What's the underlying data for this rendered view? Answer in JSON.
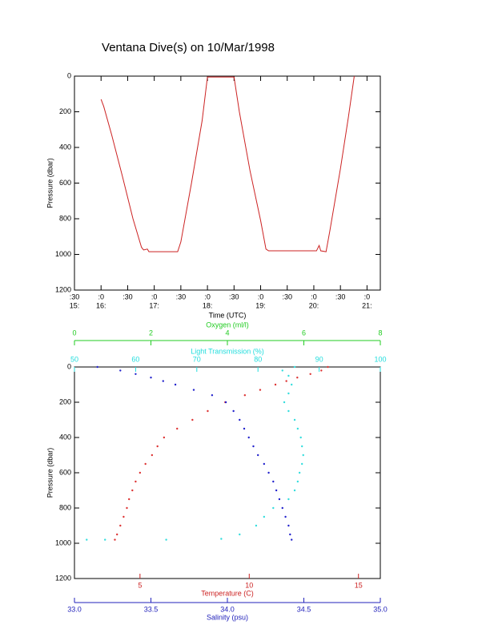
{
  "chart_data": [
    {
      "type": "line",
      "title": "Ventana Dive(s) on 10/Mar/1998",
      "xlabel": "Time (UTC)",
      "ylabel": "Pressure (dbar)",
      "xlim": [
        15.5,
        21.25
      ],
      "xticks": [
        {
          "value": 15.5,
          "label": ":30"
        },
        {
          "value": 16,
          "label": ":0"
        },
        {
          "value": 16.5,
          "label": ":30"
        },
        {
          "value": 17,
          "label": ":0"
        },
        {
          "value": 17.5,
          "label": ":30"
        },
        {
          "value": 18,
          "label": ":0"
        },
        {
          "value": 18.5,
          "label": ":30"
        },
        {
          "value": 19,
          "label": ":0"
        },
        {
          "value": 19.5,
          "label": ":30"
        },
        {
          "value": 20,
          "label": ":0"
        },
        {
          "value": 20.5,
          "label": ":30"
        },
        {
          "value": 21,
          "label": ":0"
        }
      ],
      "xticks_hours": [
        {
          "value": 15.5,
          "label": "15:"
        },
        {
          "value": 16,
          "label": "16:"
        },
        {
          "value": 17,
          "label": "17:"
        },
        {
          "value": 18,
          "label": "18:"
        },
        {
          "value": 19,
          "label": "19:"
        },
        {
          "value": 20,
          "label": "20:"
        },
        {
          "value": 21,
          "label": "21:"
        }
      ],
      "ylim": [
        0,
        1200
      ],
      "y_inverted": true,
      "yticks": [
        0,
        200,
        400,
        600,
        800,
        1000,
        1200
      ],
      "color": "#cc2222",
      "x": [
        16.0,
        16.05,
        16.2,
        16.4,
        16.6,
        16.76,
        16.8,
        16.87,
        16.9,
        17.44,
        17.5,
        17.7,
        17.9,
        18.0,
        18.5,
        18.6,
        18.8,
        19.0,
        19.1,
        19.15,
        20.05,
        20.1,
        20.13,
        20.23,
        20.3,
        20.5,
        20.65,
        20.76
      ],
      "values": [
        130,
        170,
        330,
        560,
        800,
        960,
        975,
        970,
        985,
        985,
        930,
        600,
        250,
        5,
        5,
        200,
        530,
        810,
        970,
        980,
        980,
        950,
        980,
        985,
        870,
        520,
        230,
        0
      ]
    },
    {
      "type": "scatter",
      "ylabel": "Pressure (dbar)",
      "ylim": [
        0,
        1200
      ],
      "y_inverted": true,
      "yticks": [
        0,
        200,
        400,
        600,
        800,
        1000,
        1200
      ],
      "axes": [
        {
          "label": "Temperature (C)",
          "color": "#cc2222",
          "position": "bottom",
          "xlim": [
            2,
            16
          ],
          "xticks": [
            5,
            10,
            15
          ]
        },
        {
          "label": "Salinity (psu)",
          "color": "#2222bb",
          "position": "bottom",
          "xlim": [
            33.0,
            35.0
          ],
          "xticks": [
            {
              "value": 33.0,
              "label": "33.0"
            },
            {
              "value": 33.5,
              "label": "33.5"
            },
            {
              "value": 34.0,
              "label": "34.0"
            },
            {
              "value": 34.5,
              "label": "34.5"
            },
            {
              "value": 35.0,
              "label": "35.0"
            }
          ]
        },
        {
          "label": "Light Transmission (%)",
          "color": "#22dddd",
          "position": "top",
          "xlim": [
            50,
            100
          ],
          "xticks": [
            50,
            60,
            70,
            80,
            90,
            100
          ]
        },
        {
          "label": "Oxygen (ml/l)",
          "color": "#22cc22",
          "position": "top",
          "xlim": [
            0,
            8
          ],
          "xticks": [
            0,
            2,
            4,
            6,
            8
          ]
        }
      ],
      "series": [
        {
          "axis": 0,
          "color": "#dd3333",
          "x": [
            13.6,
            13.3,
            12.8,
            12.2,
            11.7,
            11.2,
            10.5,
            9.8,
            8.9,
            8.1,
            7.4,
            6.7,
            6.1,
            5.8,
            5.55,
            5.25,
            5.0,
            4.8,
            4.65,
            4.5,
            4.4,
            4.25,
            4.1,
            3.95,
            3.85
          ],
          "y": [
            0,
            20,
            40,
            60,
            80,
            100,
            130,
            160,
            200,
            250,
            300,
            350,
            400,
            450,
            500,
            550,
            600,
            650,
            700,
            750,
            800,
            850,
            900,
            950,
            980
          ]
        },
        {
          "axis": 1,
          "color": "#2222cc",
          "x": [
            33.15,
            33.3,
            33.4,
            33.5,
            33.58,
            33.66,
            33.78,
            33.9,
            33.99,
            34.04,
            34.08,
            34.11,
            34.14,
            34.17,
            34.2,
            34.24,
            34.27,
            34.3,
            34.32,
            34.34,
            34.36,
            34.38,
            34.4,
            34.41,
            34.42
          ],
          "y": [
            0,
            20,
            40,
            60,
            80,
            100,
            130,
            160,
            200,
            250,
            300,
            350,
            400,
            450,
            500,
            550,
            600,
            650,
            700,
            750,
            800,
            850,
            900,
            950,
            980
          ]
        },
        {
          "axis": 2,
          "color": "#33dddd",
          "x": [
            86,
            84,
            85,
            85.5,
            85,
            84.3,
            85,
            86,
            86.5,
            87,
            87.2,
            87.4,
            87.2,
            86.8,
            86.5,
            86,
            85,
            82.5,
            81,
            79.7,
            77,
            74,
            65,
            55,
            52
          ],
          "y": [
            0,
            20,
            50,
            100,
            150,
            200,
            250,
            300,
            350,
            400,
            450,
            500,
            550,
            600,
            650,
            700,
            750,
            800,
            850,
            900,
            950,
            975,
            980,
            980,
            980
          ]
        }
      ]
    }
  ]
}
